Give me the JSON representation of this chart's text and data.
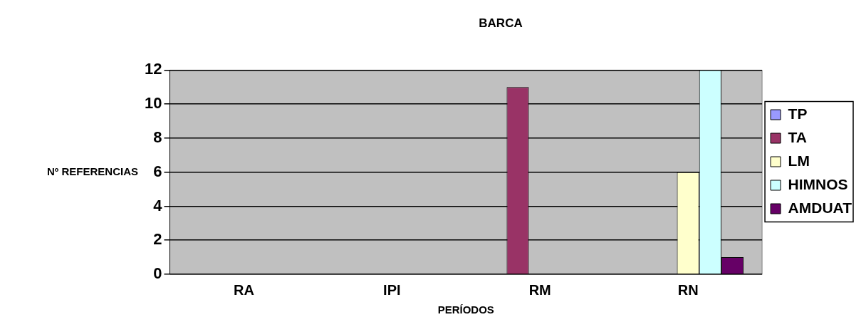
{
  "chart_data": {
    "type": "bar",
    "title": "BARCA",
    "xlabel": "PERÍODOS",
    "ylabel": "Nº REFERENCIAS",
    "categories": [
      "RA",
      "IPI",
      "RM",
      "RN"
    ],
    "series": [
      {
        "name": "TP",
        "color": "#9999ff",
        "values": [
          0,
          0,
          0,
          0
        ]
      },
      {
        "name": "TA",
        "color": "#993366",
        "values": [
          0,
          0,
          11,
          0
        ]
      },
      {
        "name": "LM",
        "color": "#ffffcc",
        "values": [
          0,
          0,
          0,
          6
        ]
      },
      {
        "name": "HIMNOS",
        "color": "#ccffff",
        "values": [
          0,
          0,
          0,
          12
        ]
      },
      {
        "name": "AMDUAT",
        "color": "#660066",
        "values": [
          0,
          0,
          0,
          1
        ]
      }
    ],
    "ylim": [
      0,
      12
    ],
    "yticks": [
      0,
      2,
      4,
      6,
      8,
      10,
      12
    ],
    "grid": "y",
    "legend": "right"
  }
}
